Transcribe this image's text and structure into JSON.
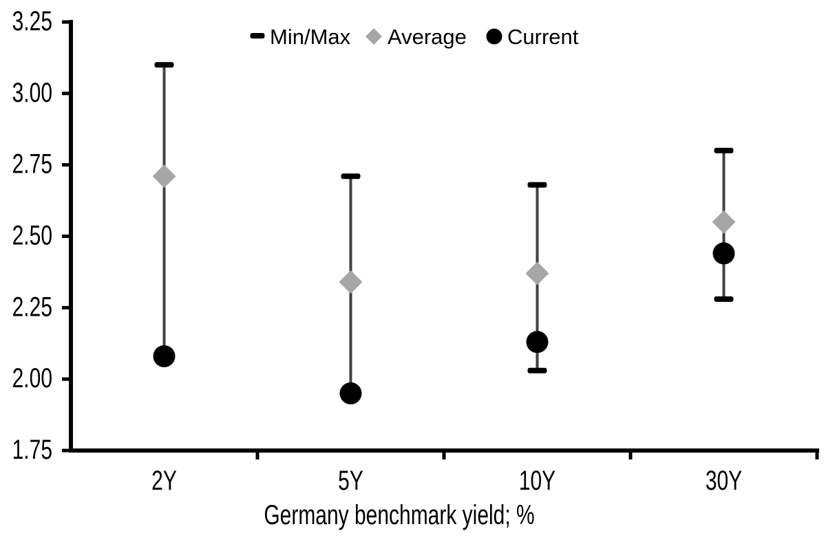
{
  "chart_data": {
    "type": "scatter",
    "subtype": "min-max-range-with-markers",
    "title": "",
    "xlabel": "Germany benchmark yield; %",
    "ylabel": "",
    "categories": [
      "2Y",
      "5Y",
      "10Y",
      "30Y"
    ],
    "series": [
      {
        "name": "Min/Max",
        "marker": "dash",
        "color": "#000000",
        "line_color": "#404040",
        "max": [
          3.1,
          2.71,
          2.68,
          2.8
        ],
        "min": [
          2.08,
          1.95,
          2.03,
          2.28
        ]
      },
      {
        "name": "Average",
        "marker": "diamond",
        "color": "#A6A6A6",
        "values": [
          2.71,
          2.34,
          2.37,
          2.55
        ]
      },
      {
        "name": "Current",
        "marker": "circle",
        "color": "#000000",
        "values": [
          2.08,
          1.95,
          2.13,
          2.44
        ]
      }
    ],
    "ylim": [
      1.75,
      3.25
    ],
    "ytick_step": 0.25,
    "ytick_labels": [
      "3.25",
      "3.00",
      "2.75",
      "2.50",
      "2.25",
      "2.00",
      "1.75"
    ],
    "xtick_labels": [
      "2Y",
      "5Y",
      "10Y",
      "30Y"
    ],
    "legend_position": "top",
    "legend_labels": [
      "Min/Max",
      "Average",
      "Current"
    ],
    "grid": false,
    "background": "#FFFFFF",
    "axis_color": "#000000",
    "text_color": "#000000"
  }
}
